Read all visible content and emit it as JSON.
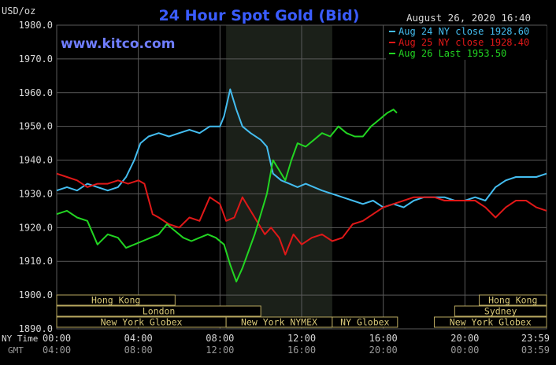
{
  "header": {
    "unit": "USD/oz",
    "title": "24 Hour Spot Gold (Bid)",
    "datetime": "August 26, 2020 16:40",
    "watermark": "www.kitco.com"
  },
  "colors": {
    "background": "#000000",
    "plot_background": "#000000",
    "highlight_band": "#1b2019",
    "grid": "#5a5a5a",
    "title": "#3a5cff",
    "watermark": "#6f7dff",
    "text": "#d8d8d8",
    "axis_text_secondary": "#9a9a9a",
    "session_border": "#b8a860",
    "session_text": "#d8c878",
    "series": [
      "#44bdf0",
      "#e01818",
      "#22d522"
    ]
  },
  "chart_data": {
    "type": "line",
    "title": "24 Hour Spot Gold (Bid)",
    "ylabel": "USD/oz",
    "xlabel": "",
    "ylim": [
      1890,
      1980
    ],
    "xlim_hours": [
      0,
      24
    ],
    "grid": true,
    "legend_placement": "top-right",
    "y_ticks": [
      "1980.0",
      "1970.0",
      "1960.0",
      "1950.0",
      "1940.0",
      "1930.0",
      "1920.0",
      "1910.0",
      "1900.0",
      "1890.0"
    ],
    "x_ticks_ny": [
      "00:00",
      "04:00",
      "08:00",
      "12:00",
      "16:00",
      "20:00",
      "23:59"
    ],
    "x_ticks_gmt": [
      "04:00",
      "08:00",
      "12:00",
      "16:00",
      "20:00",
      "00:00",
      "03:59"
    ],
    "x_axis_titles": [
      "NY Time",
      "GMT"
    ],
    "highlight_window_hours": [
      8.3,
      13.5
    ],
    "series": [
      {
        "name": "Aug 24 NY close 1928.60",
        "points": [
          [
            0,
            1931
          ],
          [
            0.5,
            1932
          ],
          [
            1,
            1931
          ],
          [
            1.5,
            1933
          ],
          [
            2,
            1932
          ],
          [
            2.5,
            1931
          ],
          [
            3,
            1932
          ],
          [
            3.4,
            1935
          ],
          [
            3.8,
            1940
          ],
          [
            4.1,
            1945
          ],
          [
            4.5,
            1947
          ],
          [
            5,
            1948
          ],
          [
            5.5,
            1947
          ],
          [
            6,
            1948
          ],
          [
            6.5,
            1949
          ],
          [
            7,
            1948
          ],
          [
            7.5,
            1950
          ],
          [
            8,
            1950
          ],
          [
            8.2,
            1953
          ],
          [
            8.5,
            1961
          ],
          [
            8.8,
            1955
          ],
          [
            9.1,
            1950
          ],
          [
            9.5,
            1948
          ],
          [
            10,
            1946
          ],
          [
            10.3,
            1944
          ],
          [
            10.6,
            1936
          ],
          [
            11,
            1934
          ],
          [
            11.4,
            1933
          ],
          [
            11.8,
            1932
          ],
          [
            12.2,
            1933
          ],
          [
            12.6,
            1932
          ],
          [
            13,
            1931
          ],
          [
            13.5,
            1930
          ],
          [
            14,
            1929
          ],
          [
            14.5,
            1928
          ],
          [
            15,
            1927
          ],
          [
            15.5,
            1928
          ],
          [
            16,
            1926
          ],
          [
            16.5,
            1927
          ],
          [
            17,
            1926
          ],
          [
            17.5,
            1928
          ],
          [
            18,
            1929
          ],
          [
            18.5,
            1929
          ],
          [
            19,
            1929
          ],
          [
            19.5,
            1928
          ],
          [
            20,
            1928
          ],
          [
            20.5,
            1929
          ],
          [
            21,
            1928
          ],
          [
            21.5,
            1932
          ],
          [
            22,
            1934
          ],
          [
            22.5,
            1935
          ],
          [
            23,
            1935
          ],
          [
            23.5,
            1935
          ],
          [
            24,
            1936
          ]
        ]
      },
      {
        "name": "Aug 25 NY close 1928.40",
        "points": [
          [
            0,
            1936
          ],
          [
            0.5,
            1935
          ],
          [
            1,
            1934
          ],
          [
            1.5,
            1932
          ],
          [
            2,
            1933
          ],
          [
            2.5,
            1933
          ],
          [
            3,
            1934
          ],
          [
            3.5,
            1933
          ],
          [
            4,
            1934
          ],
          [
            4.3,
            1933
          ],
          [
            4.7,
            1924
          ],
          [
            5,
            1923
          ],
          [
            5.5,
            1921
          ],
          [
            6,
            1920
          ],
          [
            6.5,
            1923
          ],
          [
            7,
            1922
          ],
          [
            7.5,
            1929
          ],
          [
            8,
            1927
          ],
          [
            8.3,
            1922
          ],
          [
            8.7,
            1923
          ],
          [
            9.1,
            1929
          ],
          [
            9.4,
            1926
          ],
          [
            9.8,
            1922
          ],
          [
            10.2,
            1918
          ],
          [
            10.5,
            1920
          ],
          [
            10.9,
            1917
          ],
          [
            11.2,
            1912
          ],
          [
            11.6,
            1918
          ],
          [
            12,
            1915
          ],
          [
            12.5,
            1917
          ],
          [
            13,
            1918
          ],
          [
            13.5,
            1916
          ],
          [
            14,
            1917
          ],
          [
            14.5,
            1921
          ],
          [
            15,
            1922
          ],
          [
            15.5,
            1924
          ],
          [
            16,
            1926
          ],
          [
            16.5,
            1927
          ],
          [
            17,
            1928
          ],
          [
            17.5,
            1929
          ],
          [
            18,
            1929
          ],
          [
            18.5,
            1929
          ],
          [
            19,
            1928
          ],
          [
            19.5,
            1928
          ],
          [
            20,
            1928
          ],
          [
            20.5,
            1928
          ],
          [
            21,
            1926
          ],
          [
            21.5,
            1923
          ],
          [
            22,
            1926
          ],
          [
            22.5,
            1928
          ],
          [
            23,
            1928
          ],
          [
            23.5,
            1926
          ],
          [
            24,
            1925
          ]
        ]
      },
      {
        "name": "Aug 26 Last 1953.50",
        "points": [
          [
            0,
            1924
          ],
          [
            0.5,
            1925
          ],
          [
            1,
            1923
          ],
          [
            1.5,
            1922
          ],
          [
            2,
            1915
          ],
          [
            2.5,
            1918
          ],
          [
            3,
            1917
          ],
          [
            3.4,
            1914
          ],
          [
            3.8,
            1915
          ],
          [
            4.2,
            1916
          ],
          [
            4.6,
            1917
          ],
          [
            5,
            1918
          ],
          [
            5.4,
            1921
          ],
          [
            5.8,
            1919
          ],
          [
            6.2,
            1917
          ],
          [
            6.6,
            1916
          ],
          [
            7,
            1917
          ],
          [
            7.4,
            1918
          ],
          [
            7.8,
            1917
          ],
          [
            8.2,
            1915
          ],
          [
            8.5,
            1909
          ],
          [
            8.8,
            1904
          ],
          [
            9.1,
            1908
          ],
          [
            9.4,
            1913
          ],
          [
            9.7,
            1918
          ],
          [
            10,
            1924
          ],
          [
            10.3,
            1930
          ],
          [
            10.6,
            1940
          ],
          [
            10.9,
            1937
          ],
          [
            11.2,
            1934
          ],
          [
            11.5,
            1940
          ],
          [
            11.8,
            1945
          ],
          [
            12.2,
            1944
          ],
          [
            12.6,
            1946
          ],
          [
            13,
            1948
          ],
          [
            13.4,
            1947
          ],
          [
            13.8,
            1950
          ],
          [
            14.2,
            1948
          ],
          [
            14.6,
            1947
          ],
          [
            15,
            1947
          ],
          [
            15.4,
            1950
          ],
          [
            15.8,
            1952
          ],
          [
            16.2,
            1954
          ],
          [
            16.5,
            1955
          ],
          [
            16.67,
            1954
          ]
        ]
      }
    ],
    "sessions": [
      {
        "label": "Hong Kong",
        "row": 0,
        "start": 0,
        "end": 5.8
      },
      {
        "label": "London",
        "row": 1,
        "start": 0,
        "end": 10
      },
      {
        "label": "New York Globex",
        "row": 2,
        "start": 0,
        "end": 8.3
      },
      {
        "label": "New York NYMEX",
        "row": 2,
        "start": 8.3,
        "end": 13.5
      },
      {
        "label": "NY Globex",
        "row": 2,
        "start": 13.5,
        "end": 16.7
      },
      {
        "label": "Hong Kong",
        "row": 0,
        "start": 20.7,
        "end": 24
      },
      {
        "label": "Sydney",
        "row": 1,
        "start": 19.5,
        "end": 24
      },
      {
        "label": "New York Globex",
        "row": 2,
        "start": 18.5,
        "end": 24
      }
    ]
  }
}
